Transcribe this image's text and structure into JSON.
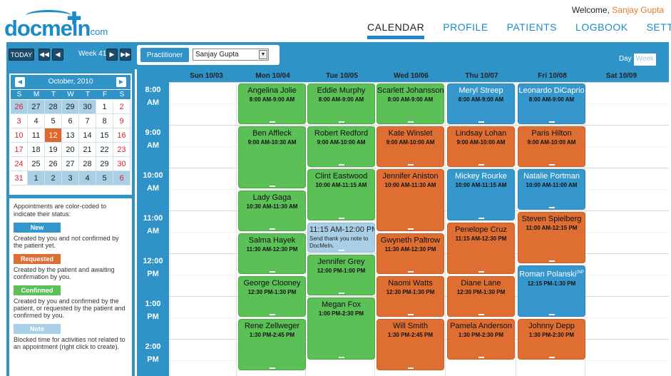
{
  "brand": {
    "name": "docmein",
    "tld": ".com"
  },
  "welcome": {
    "text": "Welcome, ",
    "user": "Sanjay Gupta"
  },
  "nav": [
    "CALENDAR",
    "PROFILE",
    "PATIENTS",
    "LOGBOOK",
    "SETTINGS"
  ],
  "toolbar": {
    "today": "TODAY",
    "week_label": "Week 41",
    "practitioner_label": "Practitioner",
    "practitioner_value": "Sanjay Gupta",
    "view_day": "Day",
    "view_week": "Week"
  },
  "minical": {
    "title": "October, 2010",
    "dow": [
      "S",
      "M",
      "T",
      "W",
      "T",
      "F",
      "S"
    ],
    "weeks": [
      [
        {
          "d": "26",
          "o": true
        },
        {
          "d": "27",
          "o": true
        },
        {
          "d": "28",
          "o": true
        },
        {
          "d": "29",
          "o": true
        },
        {
          "d": "30",
          "o": true
        },
        {
          "d": "1"
        },
        {
          "d": "2"
        }
      ],
      [
        {
          "d": "3"
        },
        {
          "d": "4"
        },
        {
          "d": "5"
        },
        {
          "d": "6"
        },
        {
          "d": "7"
        },
        {
          "d": "8"
        },
        {
          "d": "9"
        }
      ],
      [
        {
          "d": "10"
        },
        {
          "d": "11"
        },
        {
          "d": "12",
          "t": true
        },
        {
          "d": "13"
        },
        {
          "d": "14"
        },
        {
          "d": "15"
        },
        {
          "d": "16"
        }
      ],
      [
        {
          "d": "17"
        },
        {
          "d": "18"
        },
        {
          "d": "19"
        },
        {
          "d": "20"
        },
        {
          "d": "21"
        },
        {
          "d": "22"
        },
        {
          "d": "23"
        }
      ],
      [
        {
          "d": "24"
        },
        {
          "d": "25"
        },
        {
          "d": "26"
        },
        {
          "d": "27"
        },
        {
          "d": "28"
        },
        {
          "d": "29"
        },
        {
          "d": "30"
        }
      ],
      [
        {
          "d": "31"
        },
        {
          "d": "1",
          "o": true
        },
        {
          "d": "2",
          "o": true
        },
        {
          "d": "3",
          "o": true
        },
        {
          "d": "4",
          "o": true
        },
        {
          "d": "5",
          "o": true
        },
        {
          "d": "6",
          "o": true
        }
      ]
    ]
  },
  "legend": {
    "intro": "Appointments are color-coded to indicate their status:",
    "items": [
      {
        "label": "New",
        "color": "#3597cc",
        "desc": "Created by you and not confirmed by the patient yet."
      },
      {
        "label": "Requested",
        "color": "#df6e33",
        "desc": "Created by the patient and awaiting confirmation by you."
      },
      {
        "label": "Confirmed",
        "color": "#5bc056",
        "desc": "Created by you and confirmed by the patient, or requested by the patient and confirmed by you."
      },
      {
        "label": "Note",
        "color": "#a9cfe6",
        "desc": "Blocked time for activities not related to an appointment (right click to create)."
      }
    ]
  },
  "days": [
    "Sun 10/03",
    "Mon 10/04",
    "Tue 10/05",
    "Wed 10/06",
    "Thu 10/07",
    "Fri 10/08",
    "Sat 10/09"
  ],
  "times": [
    [
      "8:00",
      "AM"
    ],
    [
      "9:00",
      "AM"
    ],
    [
      "10:00",
      "AM"
    ],
    [
      "11:00",
      "AM"
    ],
    [
      "12:00",
      "PM"
    ],
    [
      "1:00",
      "PM"
    ],
    [
      "2:00",
      "PM"
    ]
  ],
  "appointments": [
    {
      "day": 1,
      "start": 8,
      "end": 9,
      "name": "Angelina Jolie",
      "time": "8:00 AM-9:00 AM",
      "status": "confirmed"
    },
    {
      "day": 1,
      "start": 9,
      "end": 10.5,
      "name": "Ben Affleck",
      "time": "9:00 AM-10:30 AM",
      "status": "confirmed"
    },
    {
      "day": 1,
      "start": 10.5,
      "end": 11.5,
      "name": "Lady Gaga",
      "time": "10:30 AM-11:30 AM",
      "status": "confirmed"
    },
    {
      "day": 1,
      "start": 11.5,
      "end": 12.5,
      "name": "Salma Hayek",
      "time": "11:30 AM-12:30 PM",
      "status": "confirmed"
    },
    {
      "day": 1,
      "start": 12.5,
      "end": 13.5,
      "name": "George Clooney",
      "time": "12:30 PM-1:30 PM",
      "status": "confirmed"
    },
    {
      "day": 1,
      "start": 13.5,
      "end": 14.75,
      "name": "Rene Zellweger",
      "time": "1:30 PM-2:45 PM",
      "status": "confirmed"
    },
    {
      "day": 2,
      "start": 8,
      "end": 9,
      "name": "Eddie Murphy",
      "time": "8:00 AM-9:00 AM",
      "status": "confirmed"
    },
    {
      "day": 2,
      "start": 9,
      "end": 10,
      "name": "Robert Redford",
      "time": "9:00 AM-10:00 AM",
      "status": "confirmed"
    },
    {
      "day": 2,
      "start": 10,
      "end": 11.25,
      "name": "Clint Eastwood",
      "time": "10:00 AM-11:15 AM",
      "status": "confirmed"
    },
    {
      "day": 2,
      "start": 11.25,
      "end": 12,
      "name": "11:15 AM-12:00 PM",
      "time": "Send thank you note to DocMeIn.",
      "status": "note"
    },
    {
      "day": 2,
      "start": 12,
      "end": 13,
      "name": "Jennifer Grey",
      "time": "12:00 PM-1:00 PM",
      "status": "confirmed"
    },
    {
      "day": 2,
      "start": 13,
      "end": 14.5,
      "name": "Megan Fox",
      "time": "1:00 PM-2:30 PM",
      "status": "confirmed"
    },
    {
      "day": 3,
      "start": 8,
      "end": 9,
      "name": "Scarlett Johansson",
      "time": "8:00 AM-9:00 AM",
      "status": "confirmed"
    },
    {
      "day": 3,
      "start": 9,
      "end": 10,
      "name": "Kate Winslet",
      "time": "9:00 AM-10:00 AM",
      "status": "requested"
    },
    {
      "day": 3,
      "start": 10,
      "end": 11.5,
      "name": "Jennifer Aniston",
      "time": "10:00 AM-11:30 AM",
      "status": "requested"
    },
    {
      "day": 3,
      "start": 11.5,
      "end": 12.5,
      "name": "Gwyneth Paltrow",
      "time": "11:30 AM-12:30 PM",
      "status": "requested"
    },
    {
      "day": 3,
      "start": 12.5,
      "end": 13.5,
      "name": "Naomi Watts",
      "time": "12:30 PM-1:30 PM",
      "status": "requested"
    },
    {
      "day": 3,
      "start": 13.5,
      "end": 14.75,
      "name": "Will Smith",
      "time": "1:30 PM-2:45 PM",
      "status": "requested"
    },
    {
      "day": 4,
      "start": 8,
      "end": 9,
      "name": "Meryl Streep",
      "time": "8:00 AM-9:00 AM",
      "status": "new"
    },
    {
      "day": 4,
      "start": 9,
      "end": 10,
      "name": "Lindsay Lohan",
      "time": "9:00 AM-10:00 AM",
      "status": "requested"
    },
    {
      "day": 4,
      "start": 10,
      "end": 11.25,
      "name": "Mickey Rourke",
      "time": "10:00 AM-11:15 AM",
      "status": "new"
    },
    {
      "day": 4,
      "start": 11.25,
      "end": 12.5,
      "name": "Penelope Cruz",
      "time": "11:15 AM-12:30 PM",
      "status": "requested"
    },
    {
      "day": 4,
      "start": 12.5,
      "end": 13.5,
      "name": "Diane Lane",
      "time": "12:30 PM-1:30 PM",
      "status": "requested"
    },
    {
      "day": 4,
      "start": 13.5,
      "end": 14.5,
      "name": "Pamela Anderson",
      "time": "1:30 PM-2:30 PM",
      "status": "requested"
    },
    {
      "day": 5,
      "start": 8,
      "end": 9,
      "name": "Leonardo DiCaprio",
      "time": "8:00 AM-9:00 AM",
      "status": "new"
    },
    {
      "day": 5,
      "start": 9,
      "end": 10,
      "name": "Paris Hilton",
      "time": "9:00 AM-10:00 AM",
      "status": "requested"
    },
    {
      "day": 5,
      "start": 10,
      "end": 11,
      "name": "Natalie Portman",
      "time": "10:00 AM-11:00 AM",
      "status": "new"
    },
    {
      "day": 5,
      "start": 11,
      "end": 12.25,
      "name": "Steven Spielberg",
      "time": "11:00 AM-12:15 PM",
      "status": "requested"
    },
    {
      "day": 5,
      "start": 12.25,
      "end": 13.5,
      "name": "Roman Polanski",
      "sup": "(NP",
      "time": "12:15 PM-1:30 PM",
      "status": "new"
    },
    {
      "day": 5,
      "start": 13.5,
      "end": 14.5,
      "name": "Johnny Depp",
      "time": "1:30 PM-2:30 PM",
      "status": "requested"
    }
  ]
}
